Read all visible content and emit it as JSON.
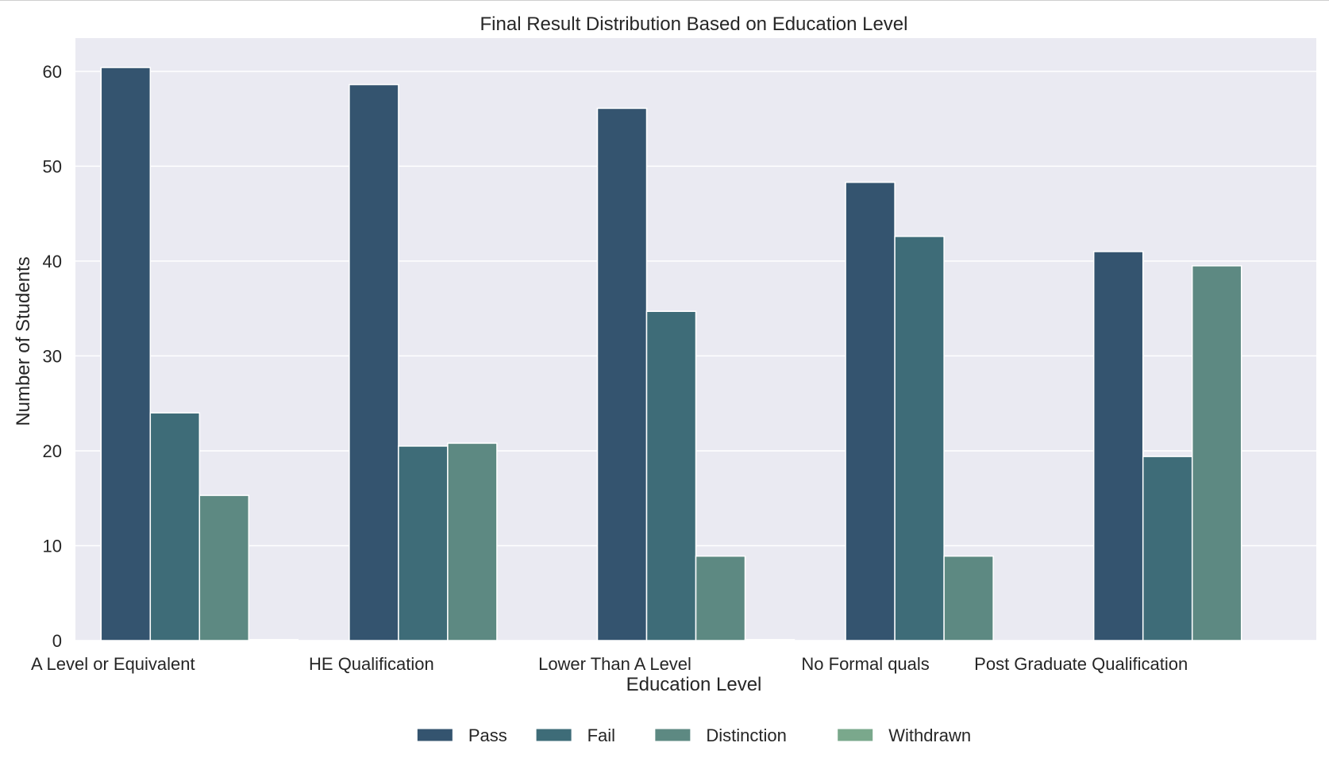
{
  "chart_data": {
    "type": "bar",
    "title": "Final Result Distribution Based on Education Level",
    "xlabel": "Education Level",
    "ylabel": "Number of Students",
    "categories": [
      "A Level or Equivalent",
      "HE Qualification",
      "Lower Than A Level",
      "No Formal quals",
      "Post Graduate Qualification"
    ],
    "series": [
      {
        "name": "Pass",
        "color": "#34546f",
        "values": [
          60.4,
          58.6,
          56.1,
          48.3,
          41.0
        ]
      },
      {
        "name": "Fail",
        "color": "#3e6c78",
        "values": [
          24.0,
          20.5,
          34.7,
          42.6,
          19.4
        ]
      },
      {
        "name": "Distinction",
        "color": "#5d8982",
        "values": [
          15.3,
          20.8,
          8.9,
          8.9,
          39.5
        ]
      },
      {
        "name": "Withdrawn",
        "color": "#7aa88c",
        "values": [
          0.1,
          0.0,
          0.1,
          0.0,
          0.0
        ]
      }
    ],
    "ylim": [
      0,
      63.5
    ],
    "yticks": [
      0,
      10,
      20,
      30,
      40,
      50,
      60
    ],
    "grid": true,
    "legend_position": "bottom-center",
    "colors": {
      "plot_background": "#eaeaf2",
      "grid": "#ffffff"
    }
  }
}
